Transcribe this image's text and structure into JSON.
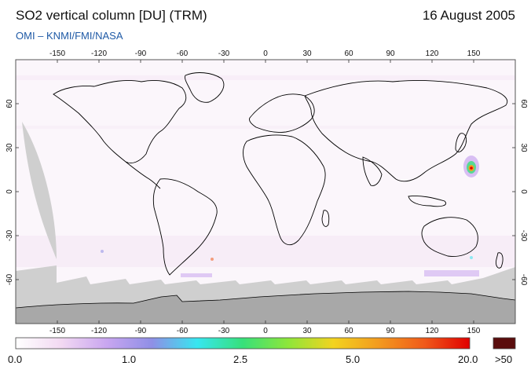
{
  "header": {
    "title": "SO2 vertical column [DU] (TRM)",
    "date": "16 August 2005",
    "credit": "OMI  –  KNMI/FMI/NASA"
  },
  "map": {
    "projection": "equirectangular",
    "lon_range": [
      -180,
      180
    ],
    "lat_range": [
      -90,
      90
    ],
    "lon_ticks": [
      "-150",
      "-120",
      "-90",
      "-60",
      "-30",
      "0",
      "30",
      "60",
      "90",
      "120",
      "150"
    ],
    "lat_ticks": [
      "60",
      "30",
      "0",
      "-30",
      "-60"
    ],
    "colors": {
      "land_outline": "#000000",
      "no_data": "#cfcfcf",
      "antarctica": "#a8a8a8",
      "background": "#fbf6fb"
    }
  },
  "colorbar": {
    "labels": [
      "0.0",
      "1.0",
      "2.5",
      "5.0",
      "20.0",
      ">50"
    ],
    "stops": [
      "#ffffff",
      "#f2d9f2",
      "#c9a6f0",
      "#8f8fe6",
      "#37e6f0",
      "#37e07a",
      "#8ee63a",
      "#f3d31f",
      "#f39a1f",
      "#f05a1a",
      "#e00000"
    ],
    "over_color": "#5a0d0d"
  }
}
